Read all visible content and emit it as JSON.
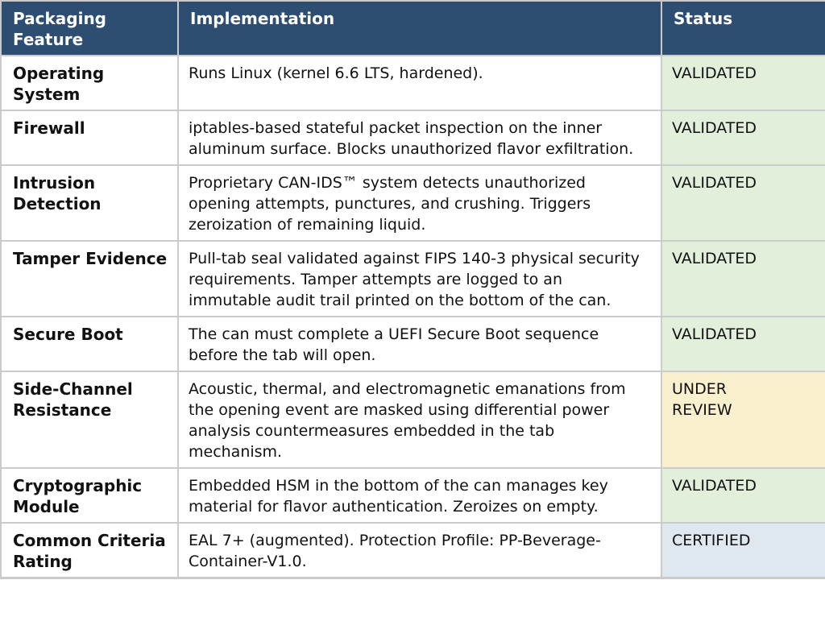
{
  "header": {
    "columns": [
      "Packaging Feature",
      "Implementation",
      "Status"
    ]
  },
  "colors": {
    "header_bg": "#2e4d72",
    "header_text": "#ffffff",
    "body_text": "#111111",
    "border": "#cbcbcb",
    "status_backgrounds": {
      "validated": "#e2efda",
      "under_review": "#faf0ce",
      "certified": "#dfe7ef"
    }
  },
  "table": {
    "rows": [
      {
        "feature": "Operating System",
        "implementation": "Runs Linux (kernel 6.6 LTS, hardened).",
        "status": "VALIDATED",
        "status_type": "validated"
      },
      {
        "feature": "Firewall",
        "implementation": "iptables-based stateful packet inspection on the inner aluminum surface. Blocks unauthorized flavor exfiltration.",
        "status": "VALIDATED",
        "status_type": "validated"
      },
      {
        "feature": "Intrusion Detection",
        "implementation": "Proprietary CAN-IDS™ system detects unauthorized opening attempts, punctures, and crushing. Triggers zeroization of remaining liquid.",
        "status": "VALIDATED",
        "status_type": "validated"
      },
      {
        "feature": "Tamper Evidence",
        "implementation": "Pull-tab seal validated against FIPS 140-3 physical security requirements. Tamper attempts are logged to an immutable audit trail printed on the bottom of the can.",
        "status": "VALIDATED",
        "status_type": "validated"
      },
      {
        "feature": "Secure Boot",
        "implementation": "The can must complete a UEFI Secure Boot sequence before the tab will open.",
        "status": "VALIDATED",
        "status_type": "validated"
      },
      {
        "feature": "Side-Channel Resistance",
        "implementation": "Acoustic, thermal, and electromagnetic emanations from the opening event are masked using differential power analysis countermeasures embedded in the tab mechanism.",
        "status": "UNDER REVIEW",
        "status_type": "under_review"
      },
      {
        "feature": "Cryptographic Module",
        "implementation": "Embedded HSM in the bottom of the can manages key material for flavor authentication. Zeroizes on empty.",
        "status": "VALIDATED",
        "status_type": "validated"
      },
      {
        "feature": "Common Criteria Rating",
        "implementation": "EAL 7+ (augmented). Protection Profile: PP-Beverage-Container-V1.0.",
        "status": "CERTIFIED",
        "status_type": "certified"
      }
    ]
  }
}
